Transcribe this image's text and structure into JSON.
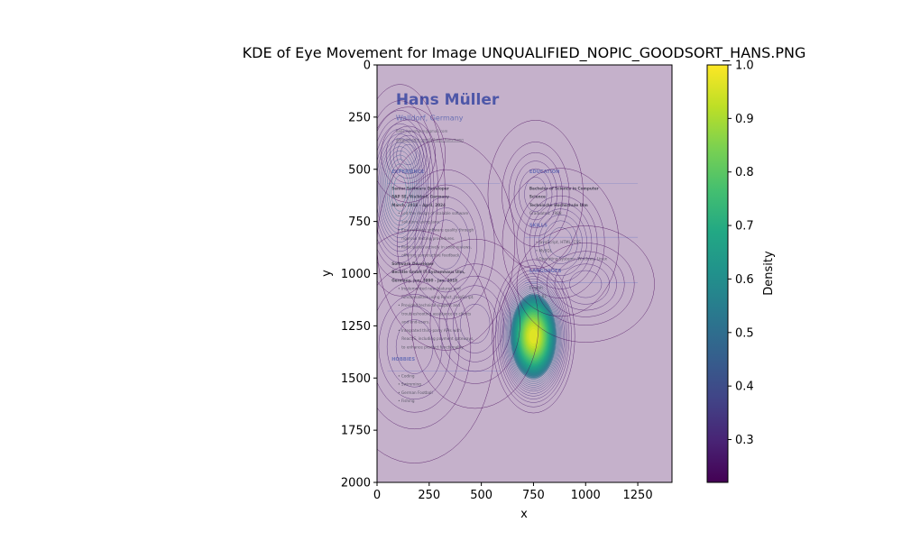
{
  "chart_data": {
    "type": "heatmap",
    "title": "KDE of Eye Movement for Image UNQUALIFIED_NOPIC_GOODSORT_HANS.PNG",
    "xlabel": "x",
    "ylabel": "y",
    "xlim": [
      0,
      1414
    ],
    "ylim": [
      2000,
      0
    ],
    "x_ticks": [
      0,
      250,
      500,
      750,
      1000,
      1250
    ],
    "y_ticks": [
      0,
      250,
      500,
      750,
      1000,
      1250,
      1500,
      1750,
      2000
    ],
    "colorbar": {
      "label": "Density",
      "range": [
        0.22,
        1.0
      ],
      "ticks": [
        0.3,
        0.4,
        0.5,
        0.6,
        0.7,
        0.8,
        0.9,
        1.0
      ],
      "colormap": "viridis"
    },
    "density_peaks": [
      {
        "x": 750,
        "y": 1300,
        "sx": 78,
        "sy": 145,
        "w": 1.0
      },
      {
        "x": 110,
        "y": 600,
        "sx": 85,
        "sy": 200,
        "w": 0.42
      },
      {
        "x": 150,
        "y": 430,
        "sx": 70,
        "sy": 90,
        "w": 0.18
      },
      {
        "x": 880,
        "y": 850,
        "sx": 110,
        "sy": 140,
        "w": 0.22
      },
      {
        "x": 760,
        "y": 620,
        "sx": 90,
        "sy": 140,
        "w": 0.14
      },
      {
        "x": 330,
        "y": 860,
        "sx": 130,
        "sy": 200,
        "w": 0.16
      },
      {
        "x": 470,
        "y": 1240,
        "sx": 120,
        "sy": 160,
        "w": 0.14
      },
      {
        "x": 180,
        "y": 1350,
        "sx": 150,
        "sy": 220,
        "w": 0.12
      },
      {
        "x": 1000,
        "y": 1050,
        "sx": 130,
        "sy": 110,
        "w": 0.12
      }
    ],
    "background_image": {
      "name": "Hans Müller",
      "location": "Walldorf, Germany",
      "email": "hans_hansmann@gmail.com",
      "website": "www.linkedin.com/in/hans_hansmann",
      "left_column": [
        {
          "kind": "heading",
          "text": "EXPERIENCE"
        },
        {
          "kind": "bold",
          "text": "Senior Software Developer"
        },
        {
          "kind": "bold",
          "text": "SAP SE, Walldorf, Germany"
        },
        {
          "kind": "bold",
          "text": "March, 2018 - April, 2024"
        },
        {
          "kind": "bullet",
          "text": "Led the design of scalable software"
        },
        {
          "kind": "cont",
          "text": "solutions using Java."
        },
        {
          "kind": "bullet",
          "text": "Ensured high software quality through"
        },
        {
          "kind": "cont",
          "text": "rigorous testing procedures."
        },
        {
          "kind": "bullet",
          "text": "Participated actively in code reviews,"
        },
        {
          "kind": "cont",
          "text": "offering constructive feedback."
        },
        {
          "kind": "bold",
          "text": "Software Developer"
        },
        {
          "kind": "bold",
          "text": "Bechtle GmbH IT-Systemhaus Ulm,"
        },
        {
          "kind": "bold",
          "text": "Germany, Jun, 1990 - Jan, 2018"
        },
        {
          "kind": "bullet",
          "text": "Implemented new features and"
        },
        {
          "kind": "cont",
          "text": "functionalities using React, JavaScript."
        },
        {
          "kind": "bullet",
          "text": "Provided technical support and"
        },
        {
          "kind": "cont",
          "text": "troubleshooting assistance to clients"
        },
        {
          "kind": "cont",
          "text": "and end-users."
        },
        {
          "kind": "bullet",
          "text": "Integrated third-party APIs with"
        },
        {
          "kind": "cont",
          "text": "ReactJS, including payment gateways,"
        },
        {
          "kind": "cont",
          "text": "to enhance product functionality."
        },
        {
          "kind": "heading",
          "text": "HOBBIES"
        },
        {
          "kind": "bullet",
          "text": "Coding"
        },
        {
          "kind": "bullet",
          "text": "Swimming"
        },
        {
          "kind": "bullet",
          "text": "German Football"
        },
        {
          "kind": "bullet",
          "text": "Fishing"
        }
      ],
      "right_column": [
        {
          "kind": "heading",
          "text": "EDUCATION"
        },
        {
          "kind": "bold",
          "text": "Bachelor of Science in Computer"
        },
        {
          "kind": "bold",
          "text": "Science"
        },
        {
          "kind": "bold",
          "text": "Technische Hochschule Ulm"
        },
        {
          "kind": "plain",
          "text": "Graduated: 1988"
        },
        {
          "kind": "heading",
          "text": "SKILLS"
        },
        {
          "kind": "bullet",
          "text": "JavaScript, HTML, CSS"
        },
        {
          "kind": "bullet",
          "text": "MySQL"
        },
        {
          "kind": "bullet",
          "text": "Operating Systems: Windows, Linux"
        },
        {
          "kind": "heading",
          "text": "LANGUAGES"
        },
        {
          "kind": "plain",
          "text": "English"
        },
        {
          "kind": "plain",
          "text": "Level: B1"
        },
        {
          "kind": "plain",
          "text": "German"
        },
        {
          "kind": "plain",
          "text": "Native"
        }
      ]
    }
  }
}
